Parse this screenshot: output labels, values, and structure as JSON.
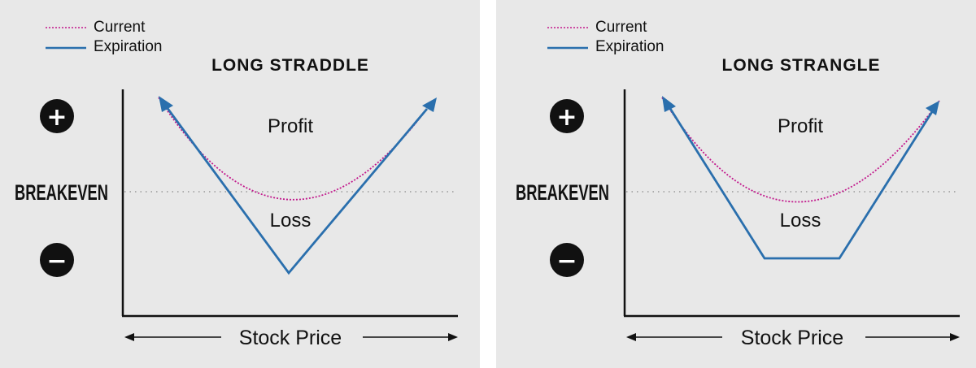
{
  "panels": [
    {
      "id": "straddle",
      "title": "LONG STRADDLE",
      "legend": {
        "current": "Current",
        "expiration": "Expiration"
      },
      "profit_label": "Profit",
      "loss_label": "Loss",
      "breakeven_label": "BREAKEVEN",
      "plus_symbol": "+",
      "minus_symbol": "−",
      "axis_label": "Stock Price"
    },
    {
      "id": "strangle",
      "title": "LONG STRANGLE",
      "legend": {
        "current": "Current",
        "expiration": "Expiration"
      },
      "profit_label": "Profit",
      "loss_label": "Loss",
      "breakeven_label": "BREAKEVEN",
      "plus_symbol": "+",
      "minus_symbol": "−",
      "axis_label": "Stock Price"
    }
  ],
  "colors": {
    "background": "#e8e8e8",
    "expiration_line": "#2a6fad",
    "current_line": "#c2188c",
    "axis": "#111111",
    "breakeven_line": "#888888"
  }
}
